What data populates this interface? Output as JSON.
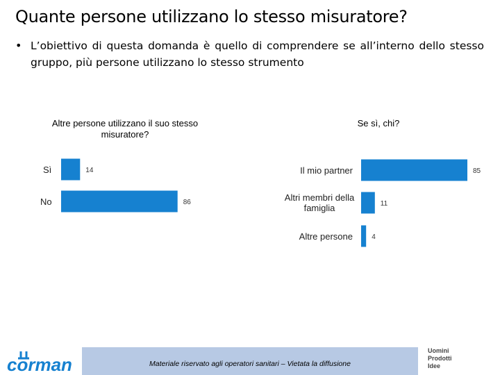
{
  "slide": {
    "title": "Quante persone utilizzano lo stesso misuratore?",
    "bullet": "L’obiettivo di questa domanda è quello di comprendere se all’interno dello stesso gruppo, più persone utilizzano lo stesso strumento"
  },
  "chart_data": [
    {
      "type": "bar",
      "orientation": "horizontal",
      "title": "Altre persone utilizzano il suo stesso misuratore?",
      "categories": [
        "Sì",
        "No"
      ],
      "values": [
        14,
        86
      ],
      "xlim": [
        0,
        100
      ],
      "grid": false,
      "color": "#1681d0"
    },
    {
      "type": "bar",
      "orientation": "horizontal",
      "title": "Se sì, chi?",
      "categories": [
        "Il mio partner",
        "Altri membri della famiglia",
        "Altre persone"
      ],
      "values": [
        85,
        11,
        4
      ],
      "xlim": [
        0,
        100
      ],
      "grid": false,
      "color": "#1681d0"
    }
  ],
  "footer": {
    "text": "Materiale riservato agli operatori sanitari – Vietata la diffusione",
    "logo_left": "corman",
    "logo_right": [
      "Uomini",
      "Prodotti",
      "Idee"
    ]
  }
}
